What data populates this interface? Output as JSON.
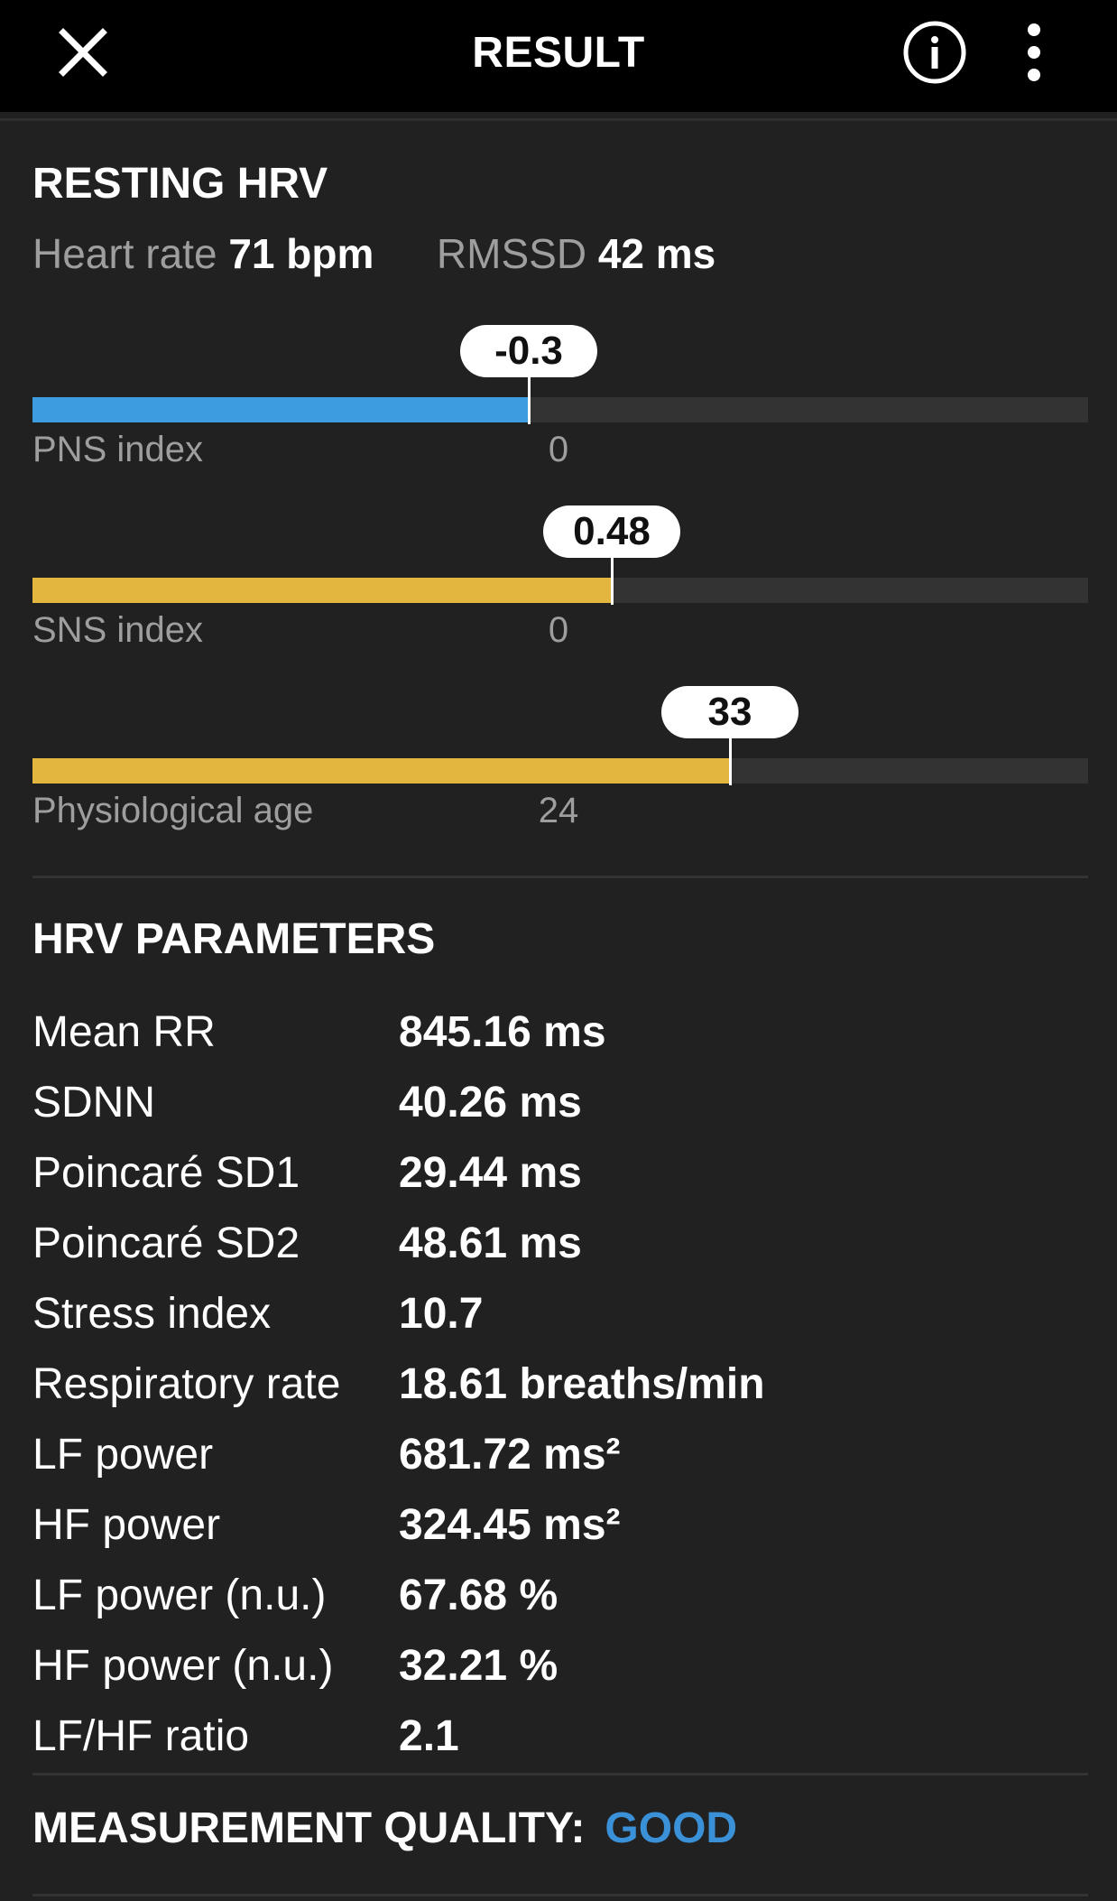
{
  "header": {
    "title": "RESULT",
    "icons": {
      "close": "close-icon",
      "info": "info-icon",
      "more": "more-vert-icon"
    }
  },
  "resting": {
    "title": "RESTING HRV",
    "heart_rate_label": "Heart rate",
    "heart_rate_value": "71 bpm",
    "rmssd_label": "RMSSD",
    "rmssd_value": "42 ms"
  },
  "gauges": [
    {
      "label": "PNS index",
      "value_text": "-0.3",
      "center_text": "0",
      "fraction": 0.47,
      "color": "#3d9be0"
    },
    {
      "label": "SNS index",
      "value_text": "0.48",
      "center_text": "0",
      "fraction": 0.549,
      "color": "#e3b640"
    },
    {
      "label": "Physiological age",
      "value_text": "33",
      "center_text": "24",
      "fraction": 0.661,
      "color": "#e3b640"
    }
  ],
  "parameters": {
    "title": "HRV PARAMETERS",
    "rows": [
      {
        "name": "Mean RR",
        "value": "845.16 ms"
      },
      {
        "name": "SDNN",
        "value": "40.26 ms"
      },
      {
        "name": "Poincaré SD1",
        "value": "29.44 ms"
      },
      {
        "name": "Poincaré SD2",
        "value": "48.61 ms"
      },
      {
        "name": "Stress index",
        "value": "10.7"
      },
      {
        "name": "Respiratory rate",
        "value": "18.61 breaths/min"
      },
      {
        "name": "LF power",
        "value": "681.72 ms²"
      },
      {
        "name": "HF power",
        "value": "324.45 ms²"
      },
      {
        "name": "LF power (n.u.)",
        "value": "67.68 %"
      },
      {
        "name": "HF power (n.u.)",
        "value": "32.21 %"
      },
      {
        "name": "LF/HF ratio",
        "value": "2.1"
      }
    ]
  },
  "quality": {
    "label": "MEASUREMENT QUALITY:",
    "value": "GOOD",
    "value_color": "#3b91d8"
  }
}
